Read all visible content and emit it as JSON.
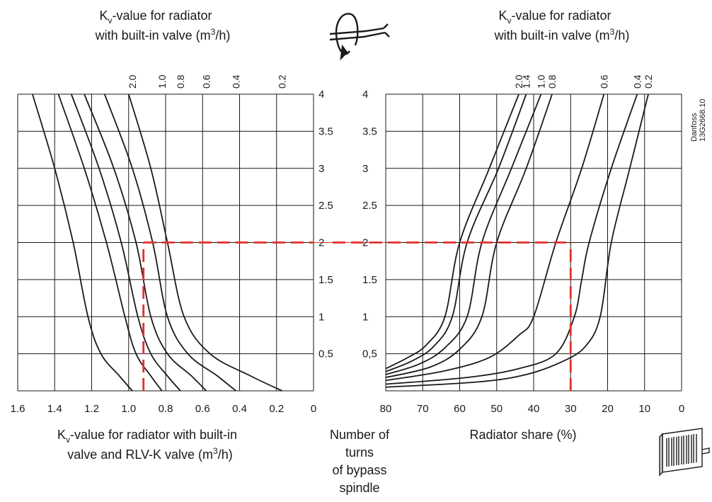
{
  "titles": {
    "left_top_line1": "K",
    "left_top_sub": "v",
    "left_top_rest": "-value for radiator",
    "left_top_line2": "with built-in valve (m",
    "left_top_sup": "3",
    "left_top_end": "/h)",
    "right_top_line1": "K",
    "right_top_sub": "v",
    "right_top_rest": "-value for radiator",
    "right_top_line2": "with built-in valve (m",
    "right_top_sup": "3",
    "right_top_end": "/h)",
    "left_bottom_line1": "K",
    "left_bottom_sub": "v",
    "left_bottom_rest": "-value for radiator with built-in",
    "left_bottom_line2": "valve and RLV-K valve (m",
    "left_bottom_sup": "3",
    "left_bottom_end": "/h)",
    "center_line1": "Number of",
    "center_line2": "turns",
    "center_line3": "of bypass",
    "center_line4": "spindle",
    "right_bottom": "Radiator share (%)",
    "side_line1": "Danfoss",
    "side_line2": "13G2668.10"
  },
  "icons": {
    "top": "spindle-turn-icon",
    "bottom": "radiator-icon"
  },
  "colors": {
    "reference_line": "#e0312b",
    "lines": "#1a1a1a"
  },
  "chart_data": [
    {
      "type": "line",
      "name": "left-panel",
      "xlabel": "Kv-value for radiator with built-in valve and RLV-K valve (m3/h)",
      "ylabel": "Number of turns of bypass spindle",
      "xlim": [
        1.6,
        0
      ],
      "ylim": [
        0,
        4
      ],
      "x_ticks": [
        "1.6",
        "1.4",
        "1.2",
        "1.0",
        "0.8",
        "0.6",
        "0.4",
        "0.2",
        "0"
      ],
      "y_ticks": [
        "0.5",
        "1",
        "1.5",
        "2",
        "2.5",
        "3",
        "3.5",
        "4"
      ],
      "grid": true,
      "series": [
        {
          "name": "2.0",
          "points": [
            [
              1.52,
              4
            ],
            [
              1.4,
              3.0
            ],
            [
              1.3,
              2.0
            ],
            [
              1.22,
              1.0
            ],
            [
              1.15,
              0.5
            ],
            [
              1.05,
              0.2
            ],
            [
              0.98,
              0
            ]
          ]
        },
        {
          "name": "1.0",
          "points": [
            [
              1.38,
              4
            ],
            [
              1.24,
              3.0
            ],
            [
              1.12,
              2.0
            ],
            [
              1.02,
              1.0
            ],
            [
              0.96,
              0.5
            ],
            [
              0.88,
              0.2
            ],
            [
              0.82,
              0
            ]
          ]
        },
        {
          "name": "0.8",
          "points": [
            [
              1.31,
              4
            ],
            [
              1.16,
              3.0
            ],
            [
              1.04,
              2.0
            ],
            [
              0.95,
              1.0
            ],
            [
              0.88,
              0.5
            ],
            [
              0.79,
              0.2
            ],
            [
              0.72,
              0
            ]
          ]
        },
        {
          "name": "0.6",
          "points": [
            [
              1.24,
              4
            ],
            [
              1.08,
              3.0
            ],
            [
              0.96,
              2.0
            ],
            [
              0.88,
              1.0
            ],
            [
              0.79,
              0.5
            ],
            [
              0.66,
              0.2
            ],
            [
              0.58,
              0
            ]
          ]
        },
        {
          "name": "0.4",
          "points": [
            [
              1.13,
              4
            ],
            [
              0.98,
              3.0
            ],
            [
              0.87,
              2.0
            ],
            [
              0.79,
              1.0
            ],
            [
              0.68,
              0.5
            ],
            [
              0.52,
              0.2
            ],
            [
              0.42,
              0
            ]
          ]
        },
        {
          "name": "0.2",
          "points": [
            [
              1.0,
              4
            ],
            [
              0.88,
              3.0
            ],
            [
              0.79,
              2.0
            ],
            [
              0.7,
              1.0
            ],
            [
              0.56,
              0.5
            ],
            [
              0.34,
              0.2
            ],
            [
              0.17,
              0
            ]
          ]
        }
      ],
      "reference": {
        "x": 0.92,
        "y": 2
      }
    },
    {
      "type": "line",
      "name": "right-panel",
      "xlabel": "Radiator share (%)",
      "ylabel": "Number of turns of bypass spindle",
      "xlim": [
        80,
        0
      ],
      "ylim": [
        0,
        4
      ],
      "x_ticks": [
        "80",
        "70",
        "60",
        "50",
        "40",
        "30",
        "20",
        "10",
        "0"
      ],
      "y_ticks": [
        "0,5",
        "1",
        "1.5",
        "2",
        "2.5",
        "3",
        "3.5",
        "4"
      ],
      "grid": true,
      "series": [
        {
          "name": "2.0",
          "points": [
            [
              80,
              0.3
            ],
            [
              74,
              0.45
            ],
            [
              69,
              0.62
            ],
            [
              64,
              1.0
            ],
            [
              60,
              2.0
            ],
            [
              52,
              3.0
            ],
            [
              44,
              4
            ]
          ]
        },
        {
          "name": "1.4",
          "points": [
            [
              80,
              0.26
            ],
            [
              73,
              0.4
            ],
            [
              67,
              0.6
            ],
            [
              62,
              1.0
            ],
            [
              58,
              2.0
            ],
            [
              49.5,
              3.0
            ],
            [
              42,
              4
            ]
          ]
        },
        {
          "name": "1.0",
          "points": [
            [
              80,
              0.22
            ],
            [
              71,
              0.36
            ],
            [
              64,
              0.58
            ],
            [
              58,
              1.0
            ],
            [
              54,
              2.0
            ],
            [
              46,
              3.0
            ],
            [
              38,
              4
            ]
          ]
        },
        {
          "name": "0.8",
          "points": [
            [
              80,
              0.18
            ],
            [
              68,
              0.32
            ],
            [
              60,
              0.56
            ],
            [
              54,
              1.0
            ],
            [
              50,
              2.0
            ],
            [
              42,
              3.0
            ],
            [
              35,
              4
            ]
          ]
        },
        {
          "name": "0.6",
          "points": [
            [
              80,
              0.14
            ],
            [
              64,
              0.27
            ],
            [
              52,
              0.45
            ],
            [
              44,
              0.75
            ],
            [
              40,
              1.0
            ],
            [
              34,
              2.0
            ],
            [
              27,
              3.0
            ],
            [
              21,
              4
            ]
          ]
        },
        {
          "name": "0.4",
          "points": [
            [
              80,
              0.09
            ],
            [
              58,
              0.18
            ],
            [
              44,
              0.3
            ],
            [
              34,
              0.5
            ],
            [
              29,
              1.0
            ],
            [
              27,
              1.5
            ],
            [
              25,
              2.0
            ],
            [
              19,
              3.0
            ],
            [
              12,
              4
            ]
          ]
        },
        {
          "name": "0.2",
          "points": [
            [
              80,
              0.05
            ],
            [
              55,
              0.12
            ],
            [
              42,
              0.22
            ],
            [
              32,
              0.4
            ],
            [
              26,
              0.6
            ],
            [
              22,
              1.0
            ],
            [
              19,
              2.0
            ],
            [
              14,
              3.0
            ],
            [
              9,
              4
            ]
          ]
        }
      ],
      "reference": {
        "x": 30,
        "y": 2
      }
    }
  ]
}
